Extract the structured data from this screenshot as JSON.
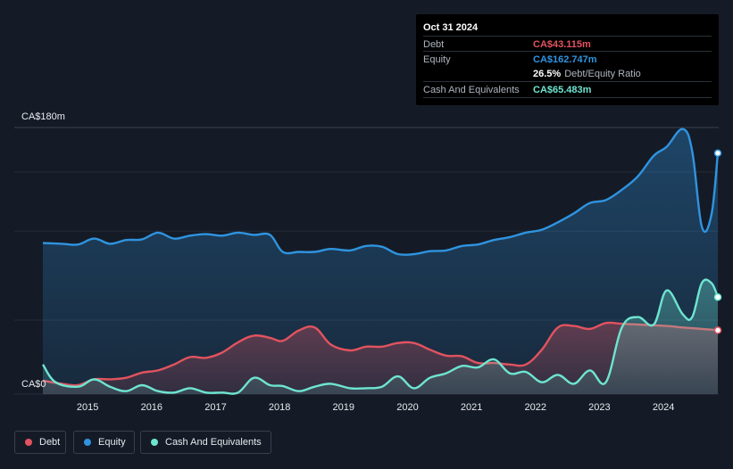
{
  "tooltip": {
    "date": "Oct 31 2024",
    "debt_label": "Debt",
    "debt_value": "CA$43.115m",
    "equity_label": "Equity",
    "equity_value": "CA$162.747m",
    "ratio_value": "26.5%",
    "ratio_label": "Debt/Equity Ratio",
    "cash_label": "Cash And Equivalents",
    "cash_value": "CA$65.483m"
  },
  "colors": {
    "debt": "#e2535f",
    "equity": "#2f94e0",
    "cash": "#6ee5d1",
    "background": "#151b26"
  },
  "legend": [
    {
      "label": "Debt",
      "color": "#e2535f"
    },
    {
      "label": "Equity",
      "color": "#2f94e0"
    },
    {
      "label": "Cash And Equivalents",
      "color": "#6ee5d1"
    }
  ],
  "chart_data": {
    "type": "area",
    "title": "",
    "xlabel": "",
    "ylabel": "",
    "y_axis_labels": [
      "CA$180m",
      "CA$0"
    ],
    "ylim": [
      0,
      180
    ],
    "xlim": [
      2014.3,
      2024.85
    ],
    "x_ticks": [
      2015,
      2016,
      2017,
      2018,
      2019,
      2020,
      2021,
      2022,
      2023,
      2024
    ],
    "grid": true,
    "legend_position": "bottom-left",
    "series": [
      {
        "name": "Equity",
        "color": "#2f94e0",
        "points": [
          [
            2014.3,
            102
          ],
          [
            2014.6,
            101.5
          ],
          [
            2014.85,
            101
          ],
          [
            2015.1,
            105
          ],
          [
            2015.35,
            101.5
          ],
          [
            2015.6,
            104
          ],
          [
            2015.85,
            104.5
          ],
          [
            2016.1,
            109
          ],
          [
            2016.35,
            105
          ],
          [
            2016.6,
            107
          ],
          [
            2016.85,
            108
          ],
          [
            2017.1,
            107
          ],
          [
            2017.35,
            109
          ],
          [
            2017.6,
            107.5
          ],
          [
            2017.85,
            107.5
          ],
          [
            2018.05,
            96
          ],
          [
            2018.3,
            96
          ],
          [
            2018.55,
            96
          ],
          [
            2018.8,
            98
          ],
          [
            2019.1,
            97
          ],
          [
            2019.35,
            100
          ],
          [
            2019.6,
            99.5
          ],
          [
            2019.85,
            94.5
          ],
          [
            2020.1,
            94.5
          ],
          [
            2020.35,
            96.5
          ],
          [
            2020.6,
            97
          ],
          [
            2020.85,
            100
          ],
          [
            2021.1,
            101
          ],
          [
            2021.35,
            104
          ],
          [
            2021.6,
            106
          ],
          [
            2021.85,
            109
          ],
          [
            2022.1,
            111
          ],
          [
            2022.35,
            116
          ],
          [
            2022.6,
            122
          ],
          [
            2022.85,
            129
          ],
          [
            2023.1,
            131
          ],
          [
            2023.35,
            138
          ],
          [
            2023.6,
            147
          ],
          [
            2023.85,
            161
          ],
          [
            2024.05,
            167
          ],
          [
            2024.3,
            179
          ],
          [
            2024.45,
            164
          ],
          [
            2024.6,
            113
          ],
          [
            2024.75,
            121
          ],
          [
            2024.85,
            162.7
          ]
        ]
      },
      {
        "name": "Debt",
        "color": "#e2535f",
        "points": [
          [
            2014.3,
            9
          ],
          [
            2014.6,
            7
          ],
          [
            2014.85,
            6
          ],
          [
            2015.1,
            10
          ],
          [
            2015.35,
            10
          ],
          [
            2015.6,
            11
          ],
          [
            2015.85,
            14.5
          ],
          [
            2016.1,
            16
          ],
          [
            2016.35,
            20
          ],
          [
            2016.6,
            25
          ],
          [
            2016.85,
            24.5
          ],
          [
            2017.1,
            28
          ],
          [
            2017.35,
            35
          ],
          [
            2017.6,
            39.5
          ],
          [
            2017.85,
            38
          ],
          [
            2018.05,
            36
          ],
          [
            2018.3,
            43
          ],
          [
            2018.55,
            45
          ],
          [
            2018.8,
            33.5
          ],
          [
            2019.1,
            29.5
          ],
          [
            2019.35,
            32
          ],
          [
            2019.6,
            32
          ],
          [
            2019.85,
            34.5
          ],
          [
            2020.1,
            34.5
          ],
          [
            2020.35,
            30
          ],
          [
            2020.6,
            26
          ],
          [
            2020.85,
            25.5
          ],
          [
            2021.1,
            21
          ],
          [
            2021.35,
            21
          ],
          [
            2021.6,
            20
          ],
          [
            2021.85,
            20
          ],
          [
            2022.1,
            30
          ],
          [
            2022.35,
            45
          ],
          [
            2022.6,
            46
          ],
          [
            2022.85,
            44
          ],
          [
            2023.1,
            48
          ],
          [
            2023.35,
            47.5
          ],
          [
            2023.6,
            47
          ],
          [
            2023.85,
            46.5
          ],
          [
            2024.05,
            46
          ],
          [
            2024.3,
            45
          ],
          [
            2024.45,
            44.5
          ],
          [
            2024.6,
            44
          ],
          [
            2024.75,
            43.5
          ],
          [
            2024.85,
            43.1
          ]
        ]
      },
      {
        "name": "Cash And Equivalents",
        "color": "#6ee5d1",
        "points": [
          [
            2014.3,
            20
          ],
          [
            2014.5,
            8
          ],
          [
            2014.85,
            5
          ],
          [
            2015.1,
            10
          ],
          [
            2015.35,
            5
          ],
          [
            2015.6,
            2
          ],
          [
            2015.85,
            6
          ],
          [
            2016.1,
            2
          ],
          [
            2016.35,
            1
          ],
          [
            2016.6,
            4
          ],
          [
            2016.85,
            1
          ],
          [
            2017.1,
            1
          ],
          [
            2017.35,
            1
          ],
          [
            2017.6,
            11
          ],
          [
            2017.85,
            6
          ],
          [
            2018.05,
            5.5
          ],
          [
            2018.3,
            2
          ],
          [
            2018.55,
            5
          ],
          [
            2018.8,
            7
          ],
          [
            2019.1,
            4
          ],
          [
            2019.35,
            4
          ],
          [
            2019.6,
            5
          ],
          [
            2019.85,
            12
          ],
          [
            2020.1,
            4
          ],
          [
            2020.35,
            11
          ],
          [
            2020.6,
            14
          ],
          [
            2020.85,
            19
          ],
          [
            2021.1,
            18
          ],
          [
            2021.35,
            23.5
          ],
          [
            2021.6,
            14
          ],
          [
            2021.85,
            15
          ],
          [
            2022.1,
            8
          ],
          [
            2022.35,
            13
          ],
          [
            2022.6,
            7
          ],
          [
            2022.85,
            16
          ],
          [
            2023.1,
            8
          ],
          [
            2023.35,
            45
          ],
          [
            2023.6,
            52
          ],
          [
            2023.85,
            47
          ],
          [
            2024.05,
            70
          ],
          [
            2024.3,
            54
          ],
          [
            2024.45,
            52
          ],
          [
            2024.6,
            75
          ],
          [
            2024.75,
            75
          ],
          [
            2024.85,
            65.5
          ]
        ]
      }
    ]
  }
}
